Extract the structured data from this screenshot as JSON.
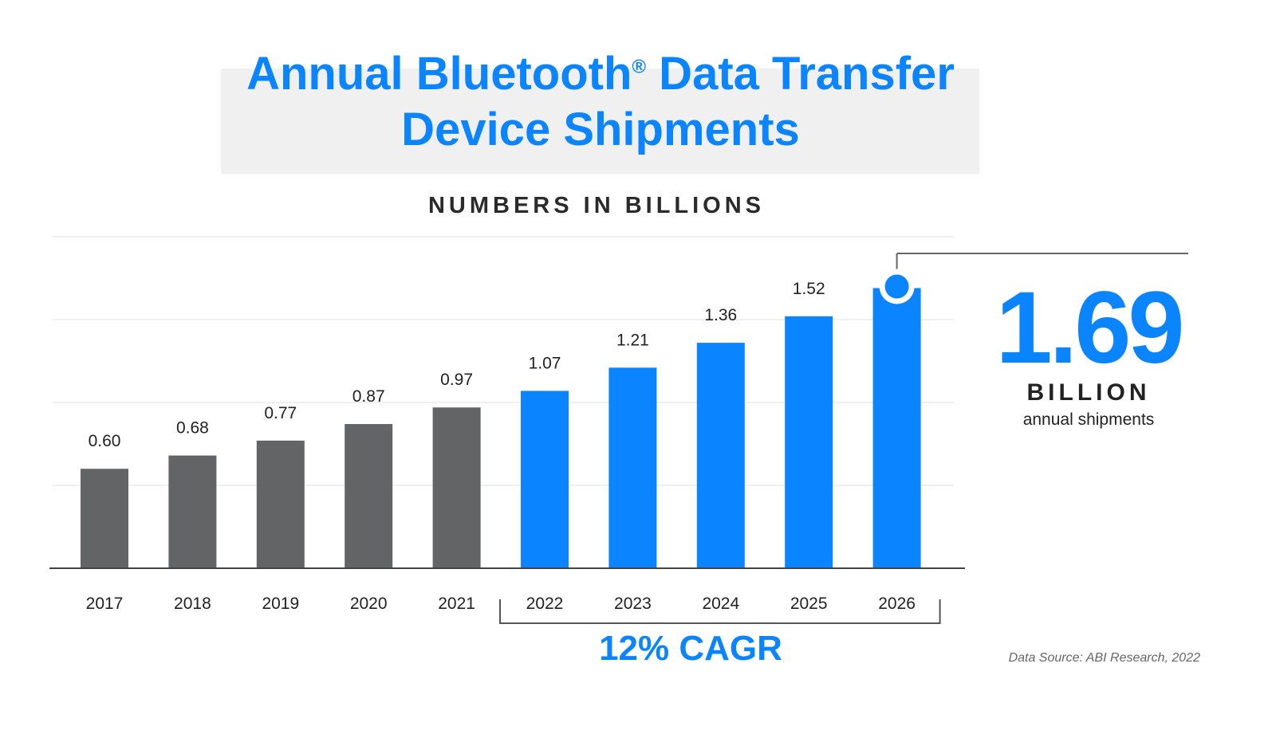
{
  "title": {
    "line1": "Annual Bluetooth",
    "reg_mark": "®",
    "line1b": " Data Transfer",
    "line2": "Device Shipments"
  },
  "subtitle": "NUMBERS IN BILLIONS",
  "callout": {
    "value": "1.69",
    "unit": "BILLION",
    "caption": "annual shipments"
  },
  "cagr_label": "12% CAGR",
  "source": "Data Source: ABI Research, 2022",
  "colors": {
    "historical": "#636466",
    "forecast": "#0a84ff",
    "title": "#0a84ff"
  },
  "chart_data": {
    "type": "bar",
    "title": "Annual Bluetooth® Data Transfer Device Shipments",
    "ylabel": "NUMBERS IN BILLIONS",
    "categories": [
      "2017",
      "2018",
      "2019",
      "2020",
      "2021",
      "2022",
      "2023",
      "2024",
      "2025",
      "2026"
    ],
    "values": [
      0.6,
      0.68,
      0.77,
      0.87,
      0.97,
      1.07,
      1.21,
      1.36,
      1.52,
      1.69
    ],
    "data_labels": [
      "0.60",
      "0.68",
      "0.77",
      "0.87",
      "0.97",
      "1.07",
      "1.21",
      "1.36",
      "1.52",
      ""
    ],
    "forecast_from": "2022",
    "ylim": [
      0,
      2.0
    ],
    "grid": true,
    "grid_step": 0.5,
    "bracket": {
      "from": "2022",
      "to": "2026",
      "label": "12% CAGR"
    }
  }
}
